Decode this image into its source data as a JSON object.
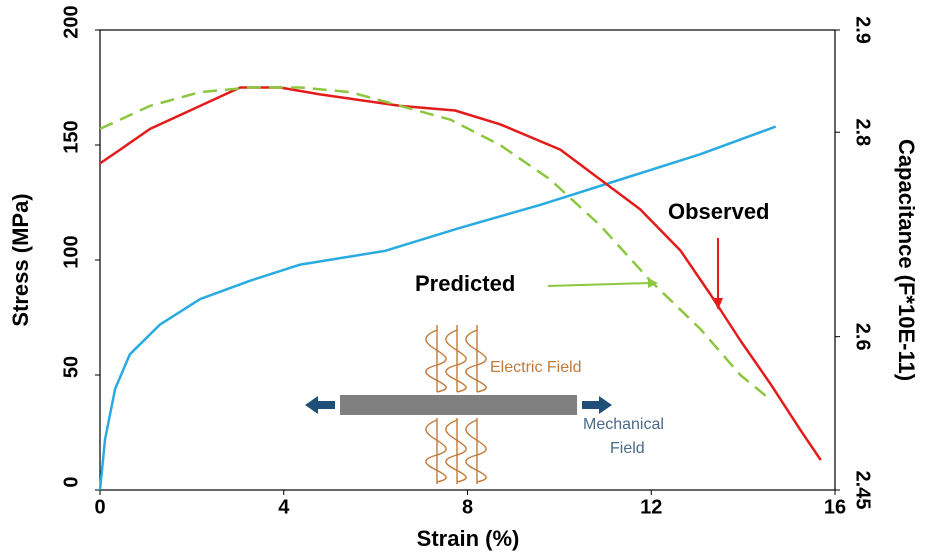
{
  "chart_data": {
    "type": "line",
    "x_label": "Strain (%)",
    "y_label": "Stress (MPa)",
    "y2_label": "Capacitance (F*10E-11)",
    "xlim": [
      0,
      16
    ],
    "xticks": [
      0,
      4,
      8,
      12,
      16
    ],
    "ylim": [
      0,
      200
    ],
    "yticks": [
      0,
      50,
      100,
      150,
      200
    ],
    "y2lim": [
      2.45,
      2.9
    ],
    "y2ticks": [
      2.45,
      2.6,
      2.8,
      2.9
    ],
    "series": [
      {
        "color": "#29abe2",
        "dashed": false,
        "x": [
          0,
          0.11,
          0.33,
          0.65,
          1.31,
          2.18,
          3.27,
          4.36,
          6.21,
          7.84,
          9.59,
          11.33,
          13.07,
          14.71
        ],
        "values": [
          0,
          22,
          44,
          59,
          72,
          83,
          91,
          98,
          104,
          114,
          124,
          135,
          146,
          158
        ]
      },
      {
        "name": "Observed",
        "color": "#e31b1b",
        "dashed": false,
        "x": [
          0,
          0.44,
          1.09,
          2.18,
          3.05,
          3.92,
          4.79,
          6.54,
          7.73,
          8.71,
          10.02,
          10.89,
          11.76,
          12.64,
          13.29,
          13.94,
          14.6,
          15.25,
          15.69
        ],
        "values": [
          142,
          148,
          157,
          167,
          175,
          175,
          172,
          167,
          165,
          159,
          148,
          135,
          122,
          104,
          85,
          65,
          46,
          26,
          13
        ]
      },
      {
        "name": "Predicted",
        "color": "#8dc63f",
        "dashed": true,
        "x": [
          0,
          1.09,
          2.18,
          3.27,
          4.36,
          5.45,
          6.54,
          7.63,
          8.71,
          9.8,
          10.89,
          11.98,
          13.07,
          13.94,
          14.49
        ],
        "values": [
          157,
          167,
          173,
          175,
          175,
          173,
          167,
          161,
          150,
          135,
          115,
          91,
          70,
          50,
          41
        ]
      }
    ],
    "annotations": [
      "Electric Field",
      "Mechanical",
      "Field"
    ]
  }
}
